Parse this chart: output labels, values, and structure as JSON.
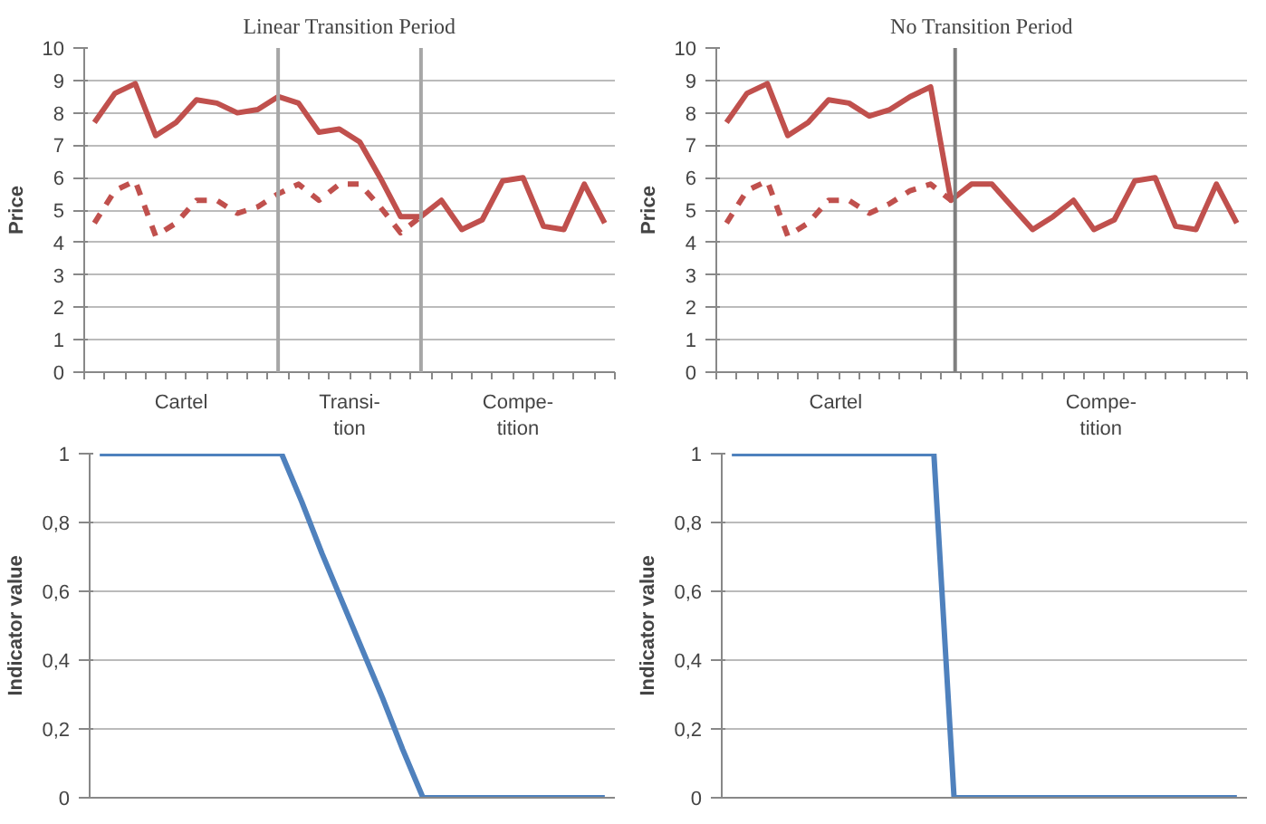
{
  "chart_data": [
    {
      "type": "line",
      "title": "Linear Transition Period",
      "ylabel": "Price",
      "categories": [
        null,
        null,
        null,
        null,
        null,
        null,
        null,
        null,
        null,
        null,
        null,
        null,
        null,
        null,
        null,
        null,
        null,
        null,
        null,
        null,
        null,
        null,
        null,
        null,
        null,
        null
      ],
      "annotations": [
        "Cartel",
        "Transi-\ntion",
        "Compe-\ntition"
      ],
      "ylim": [
        0,
        10
      ],
      "yticks": [
        0,
        1,
        2,
        3,
        4,
        5,
        6,
        7,
        8,
        9,
        10
      ],
      "grid": "y",
      "series": [
        {
          "color": "#c0504d",
          "line_style": "solid",
          "values": [
            7.7,
            8.6,
            8.9,
            7.3,
            7.7,
            8.4,
            8.3,
            8.0,
            8.1,
            8.5,
            8.3,
            7.4,
            7.5,
            7.1,
            6.0,
            4.8,
            4.8,
            5.3,
            4.4,
            4.7,
            5.9,
            6.0,
            4.5,
            4.4,
            5.8,
            4.6
          ]
        },
        {
          "color": "#c0504d",
          "line_style": "dashed",
          "values": [
            4.6,
            5.6,
            5.9,
            4.2,
            4.6,
            5.3,
            5.3,
            4.9,
            5.1,
            5.5,
            5.8,
            5.3,
            5.8,
            5.8,
            5.1,
            4.3,
            4.8,
            null,
            null,
            null,
            null,
            null,
            null,
            null,
            null,
            null
          ]
        }
      ]
    },
    {
      "type": "line",
      "title": "No Transition Period",
      "ylabel": "Price",
      "categories": [
        null,
        null,
        null,
        null,
        null,
        null,
        null,
        null,
        null,
        null,
        null,
        null,
        null,
        null,
        null,
        null,
        null,
        null,
        null,
        null,
        null,
        null,
        null,
        null,
        null,
        null
      ],
      "annotations": [
        "Cartel",
        "Compe-\ntition"
      ],
      "ylim": [
        0,
        10
      ],
      "yticks": [
        0,
        1,
        2,
        3,
        4,
        5,
        6,
        7,
        8,
        9,
        10
      ],
      "grid": "y",
      "series": [
        {
          "color": "#c0504d",
          "line_style": "solid",
          "values": [
            7.7,
            8.6,
            8.9,
            7.3,
            7.7,
            8.4,
            8.3,
            7.9,
            8.1,
            8.5,
            8.8,
            5.3,
            5.8,
            5.8,
            5.1,
            4.4,
            4.8,
            5.3,
            4.4,
            4.7,
            5.9,
            6.0,
            4.5,
            4.4,
            5.8,
            4.6
          ]
        },
        {
          "color": "#c0504d",
          "line_style": "dashed",
          "values": [
            4.6,
            5.6,
            5.9,
            4.2,
            4.6,
            5.3,
            5.3,
            4.9,
            5.2,
            5.6,
            5.8,
            5.3,
            null,
            null,
            null,
            null,
            null,
            null,
            null,
            null,
            null,
            null,
            null,
            null,
            null,
            null
          ]
        }
      ]
    },
    {
      "type": "line",
      "ylabel": "Indicator value",
      "categories": [
        null,
        null,
        null,
        null,
        null,
        null,
        null,
        null,
        null,
        null,
        null,
        null,
        null,
        null,
        null,
        null,
        null,
        null,
        null,
        null,
        null,
        null,
        null,
        null,
        null,
        null
      ],
      "ylim": [
        0,
        1
      ],
      "yticks": [
        0,
        {
          "value": 0.2,
          "label": "0,2"
        },
        {
          "value": 0.4,
          "label": "0,4"
        },
        {
          "value": 0.6,
          "label": "0,6"
        },
        {
          "value": 0.8,
          "label": "0,8"
        },
        1
      ],
      "grid": "y",
      "series": [
        {
          "color": "#4f81bd",
          "line_style": "solid",
          "values": [
            1,
            1,
            1,
            1,
            1,
            1,
            1,
            1,
            1,
            1,
            0.86,
            0.71,
            0.57,
            0.43,
            0.29,
            0.14,
            0,
            0,
            0,
            0,
            0,
            0,
            0,
            0,
            0,
            0
          ]
        }
      ]
    },
    {
      "type": "line",
      "ylabel": "Indicator value",
      "categories": [
        null,
        null,
        null,
        null,
        null,
        null,
        null,
        null,
        null,
        null,
        null,
        null,
        null,
        null,
        null,
        null,
        null,
        null,
        null,
        null,
        null,
        null,
        null,
        null,
        null,
        null
      ],
      "ylim": [
        0,
        1
      ],
      "yticks": [
        0,
        {
          "value": 0.2,
          "label": "0,2"
        },
        {
          "value": 0.4,
          "label": "0,4"
        },
        {
          "value": 0.6,
          "label": "0,6"
        },
        {
          "value": 0.8,
          "label": "0,8"
        },
        1
      ],
      "grid": "y",
      "series": [
        {
          "color": "#4f81bd",
          "line_style": "solid",
          "values": [
            1,
            1,
            1,
            1,
            1,
            1,
            1,
            1,
            1,
            1,
            1,
            0,
            0,
            0,
            0,
            0,
            0,
            0,
            0,
            0,
            0,
            0,
            0,
            0,
            0,
            0
          ]
        }
      ]
    }
  ]
}
